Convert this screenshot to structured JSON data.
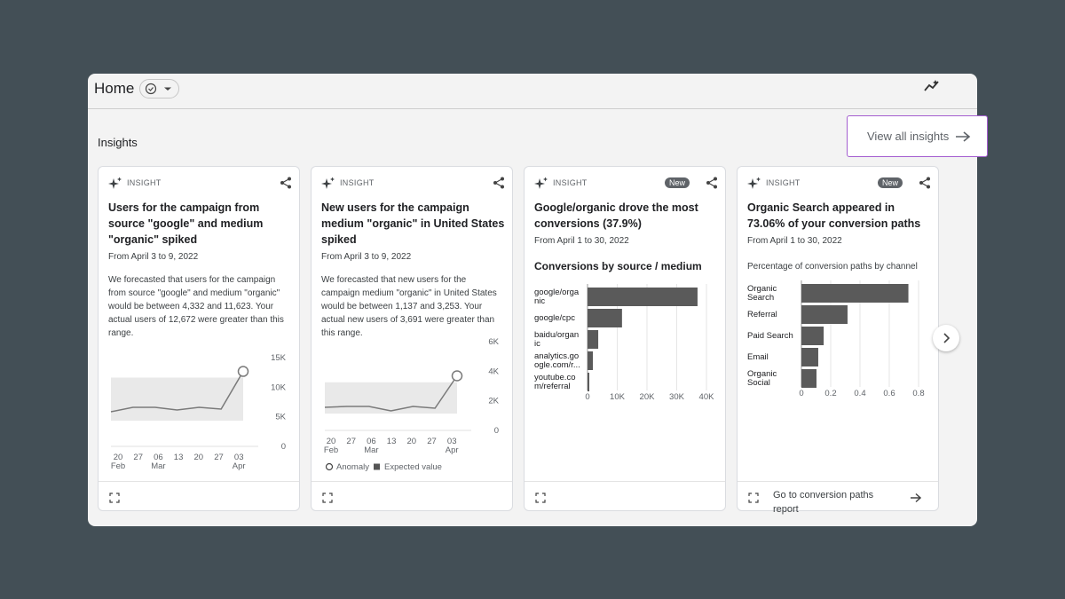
{
  "header": {
    "title": "Home"
  },
  "section_title": "Insights",
  "view_all": "View all insights",
  "cards": [
    {
      "badge": "INSIGHT",
      "title": "Users for the campaign from source \"google\" and medium \"organic\" spiked",
      "date": "From April 3 to 9, 2022",
      "body": "We forecasted that users for the campaign from source \"google\" and medium \"organic\" would be between 4,332 and 11,623. Your actual users of 12,672 were greater than this range.",
      "chart": {
        "type": "line",
        "x_labels": [
          "20",
          "27",
          "06",
          "13",
          "20",
          "27",
          "03"
        ],
        "x_months": [
          "Feb",
          null,
          "Mar",
          null,
          null,
          null,
          "Apr"
        ],
        "values": [
          5850,
          6600,
          6600,
          6150,
          6600,
          6300,
          12672
        ],
        "band": [
          4332,
          11623
        ],
        "ylim": [
          0,
          15000
        ],
        "yticks": [
          0,
          {
            "value": 5000,
            "label": "5K"
          },
          {
            "value": 10000,
            "label": "10K"
          },
          {
            "value": 15000,
            "label": "15K"
          }
        ]
      }
    },
    {
      "badge": "INSIGHT",
      "title": "New users for the campaign medium \"organic\" in United States spiked",
      "date": "From April 3 to 9, 2022",
      "body": "We forecasted that new users for the campaign medium \"organic\" in United States would be between 1,137 and 3,253. Your actual new users of 3,691 were greater than this range.",
      "chart": {
        "type": "line",
        "x_labels": [
          "20",
          "27",
          "06",
          "13",
          "20",
          "27",
          "03"
        ],
        "x_months": [
          "Feb",
          null,
          "Mar",
          null,
          null,
          null,
          "Apr"
        ],
        "values": [
          1560,
          1620,
          1620,
          1320,
          1620,
          1500,
          3691
        ],
        "band": [
          1137,
          3253
        ],
        "ylim": [
          0,
          6000
        ],
        "yticks": [
          0,
          {
            "value": 2000,
            "label": "2K"
          },
          {
            "value": 4000,
            "label": "4K"
          },
          {
            "value": 6000,
            "label": "6K"
          }
        ],
        "legend": {
          "anomaly": "Anomaly",
          "expected": "Expected value"
        }
      }
    },
    {
      "badge": "INSIGHT",
      "new_badge": "New",
      "title": "Google/organic drove the most conversions (37.9%)",
      "date": "From April 1 to 30, 2022",
      "chart": {
        "type": "hbar",
        "title": "Conversions by source / medium",
        "categories": [
          "google/organic",
          "google/cpc",
          "baidu/organic",
          "analytics.google.com/r...",
          "youtube.com/referral"
        ],
        "values": [
          37000,
          11600,
          3600,
          1800,
          600
        ],
        "color": "#5a5a5a",
        "xlim": [
          0,
          40000
        ],
        "xticks": [
          0,
          {
            "value": 10000,
            "label": "10K"
          },
          {
            "value": 20000,
            "label": "20K"
          },
          {
            "value": 30000,
            "label": "30K"
          },
          {
            "value": 40000,
            "label": "40K"
          }
        ]
      }
    },
    {
      "badge": "INSIGHT",
      "new_badge": "New",
      "title": "Organic Search appeared in 73.06% of your conversion paths",
      "date": "From April 1 to 30, 2022",
      "chart": {
        "type": "hbar",
        "title": "Percentage of conversion paths by channel",
        "categories": [
          "Organic Search",
          "Referral",
          "Paid Search",
          "Email",
          "Organic Social"
        ],
        "values": [
          0.7306,
          0.315,
          0.152,
          0.115,
          0.103
        ],
        "color": "#5a5a5a",
        "xlim": [
          0,
          0.8
        ],
        "xticks": [
          0,
          0.2,
          0.4,
          0.6,
          0.8
        ]
      },
      "footer_link": "Go to conversion paths report"
    }
  ]
}
